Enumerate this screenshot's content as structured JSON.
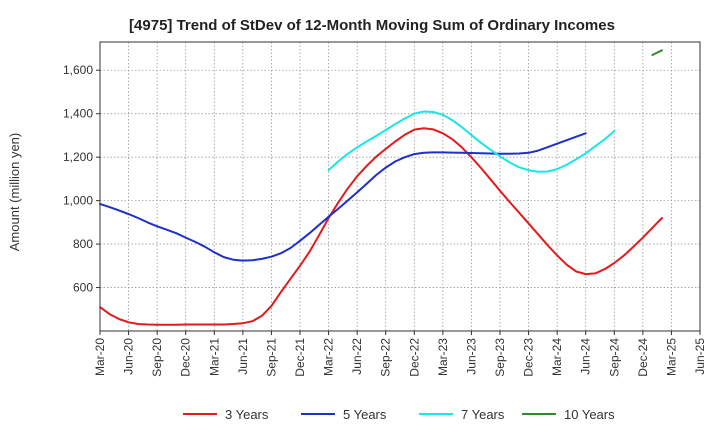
{
  "chart_data": {
    "type": "line",
    "title": "[4975]  Trend of StDev of 12-Month Moving Sum of Ordinary Incomes",
    "xlabel": "",
    "ylabel": "Amount (million yen)",
    "x_ticks": [
      "Mar-20",
      "Jun-20",
      "Sep-20",
      "Dec-20",
      "Mar-21",
      "Jun-21",
      "Sep-21",
      "Dec-21",
      "Mar-22",
      "Jun-22",
      "Sep-22",
      "Dec-22",
      "Mar-23",
      "Jun-23",
      "Sep-23",
      "Dec-23",
      "Mar-24",
      "Jun-24",
      "Sep-24",
      "Dec-24",
      "Mar-25",
      "Jun-25"
    ],
    "y_ticks": [
      600,
      800,
      1000,
      1200,
      1400,
      1600
    ],
    "y_tick_labels": [
      "600",
      "800",
      "1,000",
      "1,200",
      "1,400",
      "1,600"
    ],
    "ylim": [
      400,
      1730
    ],
    "grid": true,
    "legend_position": "bottom",
    "series": [
      {
        "name": "3 Years",
        "color": "#e31a1c",
        "start_index": 0,
        "values": [
          510,
          478,
          455,
          440,
          432,
          430,
          429,
          429,
          429,
          430,
          430,
          430,
          430,
          430,
          432,
          436,
          445,
          470,
          515,
          580,
          640,
          700,
          765,
          840,
          920,
          990,
          1055,
          1112,
          1160,
          1202,
          1238,
          1272,
          1303,
          1327,
          1333,
          1328,
          1310,
          1282,
          1245,
          1200,
          1150,
          1098,
          1045,
          994,
          945,
          895,
          845,
          795,
          748,
          705,
          674,
          662,
          665,
          685,
          713,
          747,
          787,
          830,
          875,
          920
        ]
      },
      {
        "name": "5 Years",
        "color": "#1f2fcc",
        "start_index": 0,
        "values": [
          985,
          970,
          955,
          938,
          920,
          900,
          882,
          866,
          850,
          830,
          810,
          788,
          762,
          740,
          728,
          724,
          726,
          732,
          742,
          758,
          782,
          815,
          850,
          888,
          926,
          962,
          1000,
          1038,
          1078,
          1118,
          1152,
          1180,
          1200,
          1214,
          1220,
          1222,
          1222,
          1221,
          1220,
          1219,
          1218,
          1217,
          1216,
          1216,
          1217,
          1220,
          1230,
          1246,
          1262,
          1278,
          1294,
          1310
        ]
      },
      {
        "name": "7 Years",
        "color": "#19e6e6",
        "start_index": 24,
        "values": [
          1140,
          1180,
          1215,
          1245,
          1272,
          1298,
          1325,
          1352,
          1378,
          1400,
          1410,
          1408,
          1395,
          1370,
          1338,
          1302,
          1266,
          1234,
          1204,
          1176,
          1154,
          1140,
          1133,
          1134,
          1145,
          1165,
          1190,
          1218,
          1250,
          1283,
          1320
        ]
      },
      {
        "name": "10 Years",
        "color": "#2e8b2e",
        "start_index": 58,
        "values": [
          1670,
          1692
        ]
      }
    ]
  }
}
